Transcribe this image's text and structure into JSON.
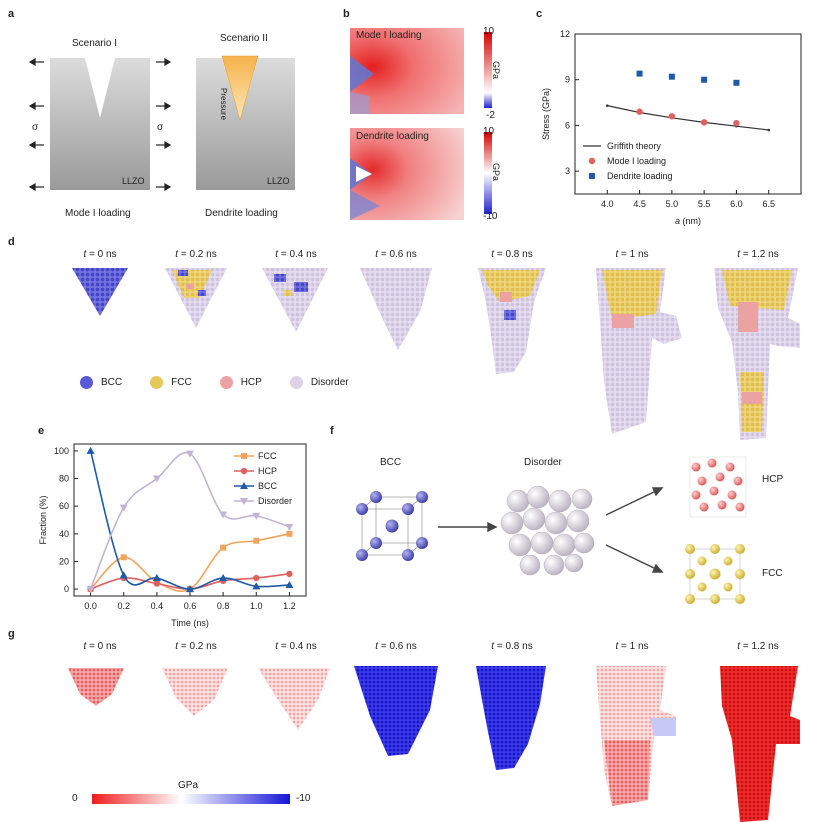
{
  "panel_a": {
    "label": "a",
    "scenario1_title": "Scenario I",
    "scenario2_title": "Scenario II",
    "sigma_left": "σ",
    "sigma_right": "σ",
    "material1": "LLZO",
    "material2": "LLZO",
    "pressure_label": "Pressure",
    "caption1": "Mode I loading",
    "caption2": "Dendrite loading"
  },
  "panel_b": {
    "label": "b",
    "map1_title": "Mode I loading",
    "map2_title": "Dendrite loading",
    "cbar1_max": "10",
    "cbar1_min": "-2",
    "cbar1_unit": "GPa",
    "cbar2_max": "10",
    "cbar2_min": "-10",
    "cbar2_unit": "GPa"
  },
  "panel_d": {
    "label": "d",
    "times": [
      "t = 0 ns",
      "t = 0.2 ns",
      "t = 0.4 ns",
      "t = 0.6 ns",
      "t = 0.8 ns",
      "t = 1 ns",
      "t = 1.2 ns"
    ],
    "legend": [
      {
        "name": "BCC",
        "color": "#5a5ad8"
      },
      {
        "name": "FCC",
        "color": "#e8c85a"
      },
      {
        "name": "HCP",
        "color": "#eca2a2"
      },
      {
        "name": "Disorder",
        "color": "#ddd3e6"
      }
    ]
  },
  "panel_f": {
    "label": "f",
    "bcc_label": "BCC",
    "disorder_label": "Disorder",
    "hcp_label": "HCP",
    "fcc_label": "FCC"
  },
  "panel_g": {
    "label": "g",
    "times": [
      "t = 0 ns",
      "t = 0.2 ns",
      "t = 0.4 ns",
      "t = 0.6 ns",
      "t = 0.8 ns",
      "t = 1 ns",
      "t = 1.2 ns"
    ],
    "cbar_unit": "GPa",
    "cbar_min_label": "0",
    "cbar_max_label": "-10"
  },
  "chart_data": [
    {
      "panel": "c",
      "type": "scatter",
      "xlabel": "a (nm)",
      "ylabel": "Stress (GPa)",
      "xlim": [
        3.5,
        7.0
      ],
      "ylim": [
        1.5,
        12
      ],
      "xticks": [
        "4.0",
        "4.5",
        "5.0",
        "5.5",
        "6.0",
        "6.5"
      ],
      "yticks": [
        "3",
        "6",
        "9",
        "12"
      ],
      "legend_position": "bottom-left",
      "series": [
        {
          "name": "Griffith theory",
          "kind": "line",
          "color": "#333333",
          "x": [
            4.0,
            4.5,
            5.0,
            5.5,
            6.0,
            6.5
          ],
          "y": [
            7.3,
            6.85,
            6.5,
            6.2,
            5.95,
            5.7
          ]
        },
        {
          "name": "Mode I loading",
          "kind": "circle",
          "color": "#e0605f",
          "x": [
            4.5,
            5.0,
            5.5,
            6.0
          ],
          "y": [
            6.9,
            6.6,
            6.2,
            6.15
          ]
        },
        {
          "name": "Dendrite loading",
          "kind": "square",
          "color": "#1e5aa8",
          "x": [
            4.5,
            5.0,
            5.5,
            6.0
          ],
          "y": [
            9.4,
            9.2,
            9.0,
            8.8
          ]
        }
      ]
    },
    {
      "panel": "e",
      "type": "line",
      "xlabel": "Time (ns)",
      "ylabel": "Fraction (%)",
      "xlim": [
        -0.1,
        1.3
      ],
      "ylim": [
        -5,
        105
      ],
      "xticks": [
        "0.0",
        "0.2",
        "0.4",
        "0.6",
        "0.8",
        "1.0",
        "1.2"
      ],
      "yticks": [
        "0",
        "20",
        "40",
        "60",
        "80",
        "100"
      ],
      "legend_position": "top-right",
      "x": [
        0.0,
        0.2,
        0.4,
        0.6,
        0.8,
        1.0,
        1.2
      ],
      "series": [
        {
          "name": "FCC",
          "marker": "square",
          "color": "#f2a45c",
          "values": [
            0,
            23,
            5,
            0,
            30,
            35,
            40
          ]
        },
        {
          "name": "HCP",
          "marker": "circle",
          "color": "#e0605f",
          "values": [
            0,
            8,
            4,
            0,
            6,
            8,
            11
          ]
        },
        {
          "name": "BCC",
          "marker": "triangle",
          "color": "#1e5aa8",
          "values": [
            100,
            10,
            8,
            0,
            8,
            2,
            3
          ]
        },
        {
          "name": "Disorder",
          "marker": "triangle-down",
          "color": "#c2b4d4",
          "values": [
            0,
            59,
            80,
            98,
            54,
            53,
            45
          ]
        }
      ]
    }
  ]
}
